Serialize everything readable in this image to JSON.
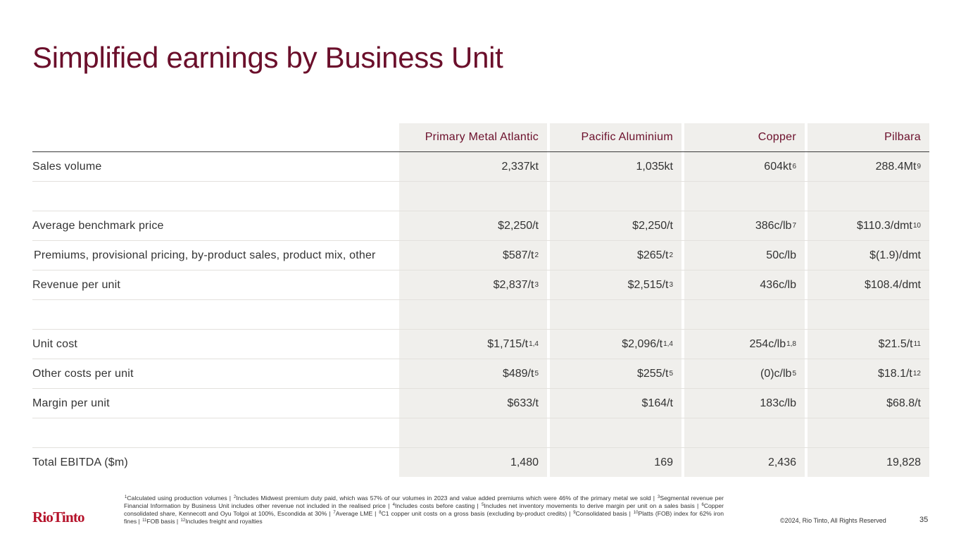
{
  "title": "Simplified earnings by Business Unit",
  "columns": [
    "Primary Metal Atlantic",
    "Pacific Aluminium",
    "Copper",
    "Pilbara"
  ],
  "rows": [
    {
      "label": "Sales volume",
      "cells": [
        [
          "2,337kt",
          ""
        ],
        [
          "1,035kt",
          ""
        ],
        [
          "604kt",
          "6"
        ],
        [
          "288.4Mt",
          "9"
        ]
      ]
    },
    {
      "label": "",
      "cells": [
        [
          "",
          ""
        ],
        [
          "",
          ""
        ],
        [
          "",
          ""
        ],
        [
          "",
          ""
        ]
      ]
    },
    {
      "label": "Average benchmark price",
      "cells": [
        [
          "$2,250/t",
          ""
        ],
        [
          "$2,250/t",
          ""
        ],
        [
          "386c/lb",
          "7"
        ],
        [
          "$110.3/dmt",
          "10"
        ]
      ]
    },
    {
      "label": "Premiums, provisional pricing, by-product sales, product mix, other",
      "cells": [
        [
          "$587/t",
          "2"
        ],
        [
          "$265/t",
          "2"
        ],
        [
          "50c/lb",
          ""
        ],
        [
          "$(1.9)/dmt",
          ""
        ]
      ]
    },
    {
      "label": "Revenue per unit",
      "cells": [
        [
          "$2,837/t",
          "3"
        ],
        [
          "$2,515/t",
          "3"
        ],
        [
          "436c/lb",
          ""
        ],
        [
          "$108.4/dmt",
          ""
        ]
      ]
    },
    {
      "label": "",
      "cells": [
        [
          "",
          ""
        ],
        [
          "",
          ""
        ],
        [
          "",
          ""
        ],
        [
          "",
          ""
        ]
      ]
    },
    {
      "label": "Unit cost",
      "cells": [
        [
          "$1,715/t",
          "1,4"
        ],
        [
          "$2,096/t",
          "1,4"
        ],
        [
          "254c/lb",
          "1,8"
        ],
        [
          "$21.5/t",
          "11"
        ]
      ]
    },
    {
      "label": "Other costs per unit",
      "cells": [
        [
          "$489/t",
          "5"
        ],
        [
          "$255/t",
          "5"
        ],
        [
          "(0)c/lb",
          "5"
        ],
        [
          "$18.1/t",
          "12"
        ]
      ]
    },
    {
      "label": "Margin per unit",
      "cells": [
        [
          "$633/t",
          ""
        ],
        [
          "$164/t",
          ""
        ],
        [
          "183c/lb",
          ""
        ],
        [
          "$68.8/t",
          ""
        ]
      ]
    },
    {
      "label": "",
      "cells": [
        [
          "",
          ""
        ],
        [
          "",
          ""
        ],
        [
          "",
          ""
        ],
        [
          "",
          ""
        ]
      ]
    },
    {
      "label": "Total EBITDA ($m)",
      "cells": [
        [
          "1,480",
          ""
        ],
        [
          "169",
          ""
        ],
        [
          "2,436",
          ""
        ],
        [
          "19,828",
          ""
        ]
      ]
    }
  ],
  "footnotes": [
    [
      "1",
      "Calculated using production volumes | "
    ],
    [
      "2",
      "Includes Midwest premium duty paid, which was 57% of our volumes in 2023 and value added premiums which were 46% of the primary metal we sold | "
    ],
    [
      "3",
      "Segmental revenue per Financial Information by Business Unit includes other revenue not included in the realised price | "
    ],
    [
      "4",
      "Includes costs before casting | "
    ],
    [
      "5",
      "Includes net inventory movements to derive margin per unit on a sales basis | "
    ],
    [
      "6",
      "Copper consolidated share, Kennecott and Oyu Tolgoi at 100%, Escondida at 30% | "
    ],
    [
      "7",
      "Average LME | "
    ],
    [
      "8",
      "C1 copper unit costs on a gross basis (excluding by-product credits) | "
    ],
    [
      "9",
      "Consolidated basis | "
    ],
    [
      "10",
      "Platts (FOB) index for 62% iron fines | "
    ],
    [
      "11",
      "FOB basis | "
    ],
    [
      "12",
      "Includes freight and royalties"
    ]
  ],
  "logo": "RioTinto",
  "copyright": "©2024, Rio Tinto, All Rights Reserved",
  "page_number": "35",
  "colors": {
    "title": "#6b0f2b",
    "logo": "#b5122a",
    "cell_bg": "#f0efec"
  }
}
